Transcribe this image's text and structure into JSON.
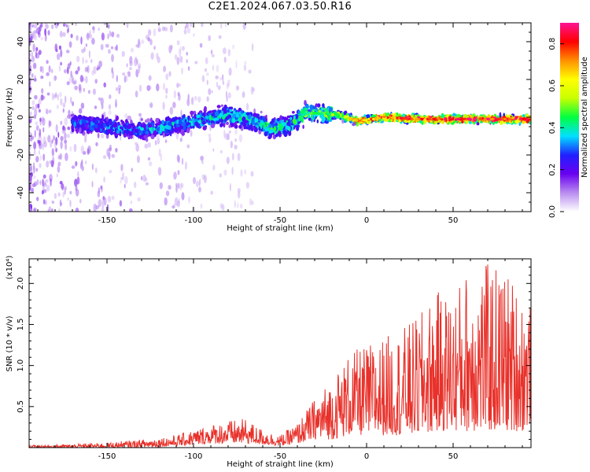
{
  "title": "C2E1.2024.067.03.50.R16",
  "chart_data": [
    {
      "type": "heatmap",
      "xlabel": "Height of straight line (km)",
      "ylabel": "Frequency (Hz)",
      "xlim": [
        -195,
        95
      ],
      "ylim": [
        -50,
        50
      ],
      "xticks": [
        -150,
        -100,
        -50,
        0,
        50
      ],
      "yticks": [
        -40,
        -20,
        0,
        20,
        40
      ],
      "colorbar": {
        "label": "Normalized spectral amplitude",
        "range": [
          0.0,
          0.9
        ],
        "ticks": [
          0.0,
          0.2,
          0.4,
          0.6,
          0.8
        ],
        "colors": [
          "#ffffff",
          "#b98cf0",
          "#6a00f0",
          "#2020ff",
          "#00e0ff",
          "#00ff40",
          "#c8ff00",
          "#ffff00",
          "#ff9000",
          "#ff0000",
          "#ff1493"
        ]
      },
      "ridge": {
        "x": [
          -170,
          -150,
          -130,
          -110,
          -95,
          -80,
          -65,
          -55,
          -45,
          -35,
          -25,
          -15,
          -5,
          10,
          30,
          50,
          70,
          90
        ],
        "center_hz": [
          -3,
          -5,
          -7,
          -4,
          -1,
          1,
          -2,
          -6,
          -4,
          2,
          2,
          1,
          -2,
          0,
          -1,
          -1,
          -1,
          -1
        ],
        "peak_amplitude": [
          0.3,
          0.35,
          0.35,
          0.4,
          0.4,
          0.42,
          0.42,
          0.45,
          0.45,
          0.5,
          0.52,
          0.55,
          0.78,
          0.82,
          0.85,
          0.88,
          0.9,
          0.88
        ]
      }
    },
    {
      "type": "line",
      "xlabel": "Height of straight line (km)",
      "ylabel": "SNR (10 * v/v)",
      "y_multiplier_label": "(x10⁴)",
      "xlim": [
        -195,
        95
      ],
      "ylim": [
        0,
        2.3
      ],
      "xticks": [
        -150,
        -100,
        -50,
        0,
        50
      ],
      "yticks": [
        0.5,
        1.0,
        1.5,
        2.0
      ],
      "color": "#e8312a",
      "envelope": {
        "x": [
          -195,
          -170,
          -150,
          -130,
          -110,
          -100,
          -90,
          -80,
          -70,
          -60,
          -50,
          -40,
          -30,
          -20,
          -10,
          0,
          10,
          20,
          30,
          40,
          50,
          60,
          70,
          80,
          90,
          95
        ],
        "low": [
          0.0,
          0.0,
          0.0,
          0.0,
          0.02,
          0.03,
          0.05,
          0.05,
          0.05,
          0.04,
          0.02,
          0.05,
          0.1,
          0.1,
          0.15,
          0.15,
          0.15,
          0.15,
          0.15,
          0.2,
          0.2,
          0.2,
          0.2,
          0.2,
          0.2,
          0.3
        ],
        "high": [
          0.03,
          0.04,
          0.06,
          0.1,
          0.15,
          0.22,
          0.28,
          0.33,
          0.35,
          0.22,
          0.15,
          0.3,
          0.6,
          0.85,
          1.15,
          1.25,
          1.35,
          1.45,
          1.6,
          1.9,
          1.9,
          2.25,
          2.25,
          2.2,
          1.9,
          1.75
        ]
      }
    }
  ]
}
